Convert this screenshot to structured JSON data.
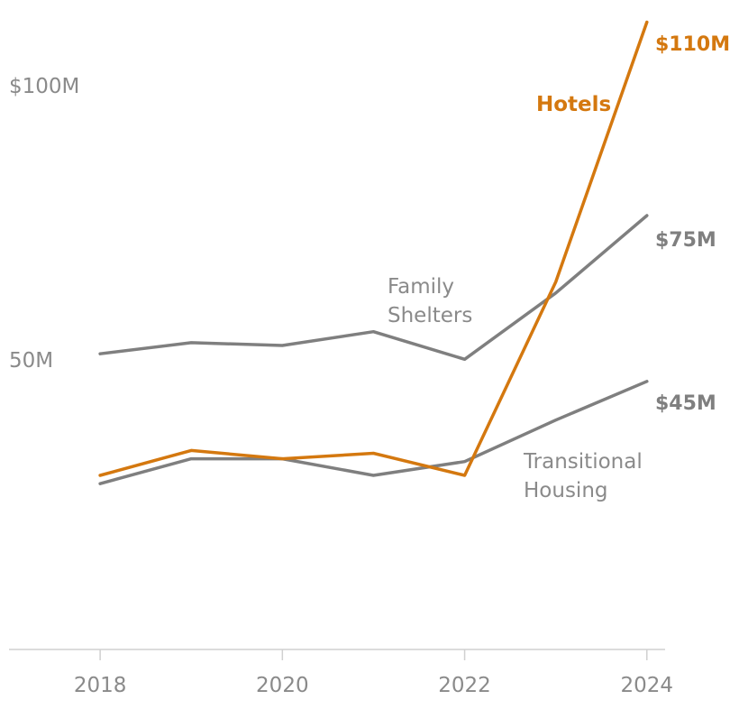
{
  "chart_data": {
    "type": "line",
    "x": [
      2018,
      2019,
      2020,
      2021,
      2022,
      2023,
      2024
    ],
    "x_ticks": [
      {
        "value": 2018,
        "label": "2018"
      },
      {
        "value": 2020,
        "label": "2020"
      },
      {
        "value": 2022,
        "label": "2022"
      },
      {
        "value": 2024,
        "label": "2024"
      }
    ],
    "y_ticks": [
      {
        "value": 100,
        "label": "$100M"
      },
      {
        "value": 50,
        "label": "50M"
      }
    ],
    "xlim": [
      2017,
      2024.2
    ],
    "ylim": [
      -3.5,
      114
    ],
    "series": [
      {
        "key": "family_shelters",
        "name_lines": [
          "Family",
          "Shelters"
        ],
        "color": "#7f7f7f",
        "values": [
          50,
          52,
          51.5,
          54,
          49,
          61,
          75
        ],
        "end_label": "$75M"
      },
      {
        "key": "transitional_housing",
        "name_lines": [
          "Transitional",
          "Housing"
        ],
        "color": "#7f7f7f",
        "values": [
          26.5,
          31,
          31,
          28,
          30.5,
          38,
          45
        ],
        "end_label": "$45M"
      },
      {
        "key": "hotels",
        "name_lines": [
          "Hotels"
        ],
        "color": "#d4780f",
        "values": [
          28,
          32.5,
          31,
          32,
          28,
          63,
          110
        ],
        "end_label": "$110M"
      }
    ]
  }
}
